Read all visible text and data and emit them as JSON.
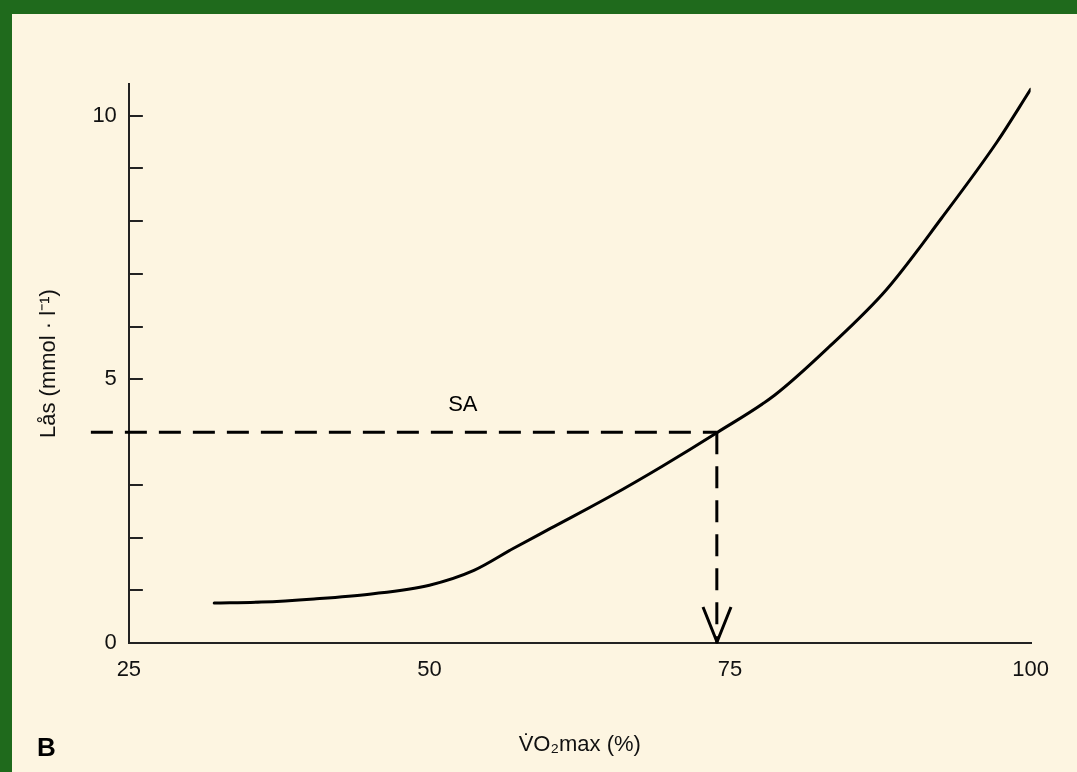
{
  "chart_data": {
    "type": "line",
    "xlabel": "V̇O₂max (%)",
    "ylabel": "Lås (mmol · l⁻¹)",
    "x": [
      32.1,
      36,
      40.4,
      45,
      50,
      53.7,
      57,
      60.1,
      65,
      69.4,
      73.9,
      78.7,
      83.3,
      88,
      92.6,
      97.2,
      100
    ],
    "series": [
      {
        "color": "#000000",
        "values": [
          0.76,
          0.78,
          0.84,
          0.93,
          1.1,
          1.38,
          1.8,
          2.18,
          2.78,
          3.36,
          3.99,
          4.7,
          5.63,
          6.7,
          8.06,
          9.5,
          10.5
        ]
      }
    ],
    "xlim": [
      25,
      100
    ],
    "xticks": [
      25,
      50,
      75,
      100
    ],
    "ylim": [
      0,
      10.6
    ],
    "yticks": [
      0,
      {
        "value": 1,
        "label": null
      },
      {
        "value": 2,
        "label": null
      },
      {
        "value": 3,
        "label": null
      },
      {
        "value": 4,
        "label": null
      },
      5,
      {
        "value": 6,
        "label": null
      },
      {
        "value": 7,
        "label": null
      },
      {
        "value": 8,
        "label": null
      },
      {
        "value": 9,
        "label": null
      },
      10
    ],
    "ref_lines": [
      {
        "axis": "y",
        "value": 4,
        "label": "SA",
        "line_style": "dashed"
      },
      {
        "axis": "x",
        "value": 73.9,
        "line_style": "dashed"
      }
    ],
    "annotations": [
      "B"
    ],
    "grid": false,
    "legend": false,
    "marker": "none",
    "line_style": "solid"
  }
}
